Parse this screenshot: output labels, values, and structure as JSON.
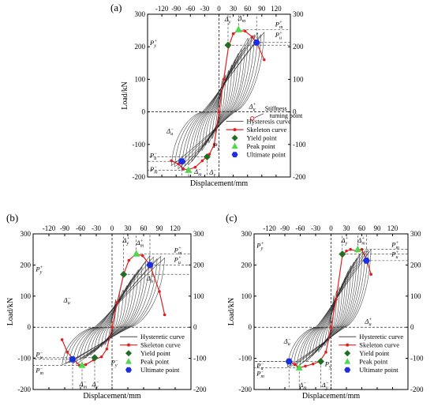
{
  "chart_data": [
    {
      "panel_label": "(a)",
      "type": "line",
      "xlabel": "Displacement/mm",
      "ylabel": "Load/kN",
      "xlim": [
        -150,
        150
      ],
      "ylim": [
        -200,
        300
      ],
      "xticks": [
        "-120",
        "-90",
        "-60",
        "-30",
        "0",
        "30",
        "60",
        "90",
        "120"
      ],
      "xtick_values": [
        -120,
        -90,
        -60,
        -30,
        0,
        30,
        60,
        90,
        120
      ],
      "yticks": [
        "-200",
        "-100",
        "0",
        "100",
        "200",
        "300"
      ],
      "ytick_values": [
        -200,
        -100,
        0,
        100,
        200,
        300
      ],
      "legend": [
        "Hysteresis curve",
        "Skeleton curve",
        "Yield point",
        "Peak point",
        "Ultimate point"
      ],
      "skeleton": {
        "x": [
          -100,
          -85,
          -75,
          -65,
          -50,
          -35,
          -20,
          -10,
          0,
          10,
          20,
          30,
          40,
          55,
          70,
          80,
          95
        ],
        "y": [
          -150,
          -160,
          -175,
          -178,
          -170,
          -150,
          -130,
          -100,
          0,
          100,
          200,
          240,
          250,
          248,
          230,
          210,
          160
        ]
      },
      "yield_points": [
        {
          "x": 19,
          "y": 205
        },
        {
          "x": -25,
          "y": -138
        }
      ],
      "peak_points": [
        {
          "x": 41,
          "y": 253
        },
        {
          "x": -64,
          "y": -179
        }
      ],
      "ultimate_points": [
        {
          "x": 79,
          "y": 213
        },
        {
          "x": -78,
          "y": -152
        }
      ],
      "annotation": "Stiffness\nturning point",
      "annotation_point": {
        "x": 70,
        "y": -20
      },
      "ref_labels": [
        {
          "t": "P",
          "sub": "y",
          "sup": "+",
          "x": -145,
          "y": 205
        },
        {
          "t": "P",
          "sub": "m",
          "sup": "+",
          "x": 118,
          "y": 262
        },
        {
          "t": "P",
          "sub": "u",
          "sup": "+",
          "x": 118,
          "y": 230
        },
        {
          "t": "P",
          "sub": "y",
          "sup": "−",
          "x": -12,
          "y": -110
        },
        {
          "t": "P",
          "sub": "u",
          "sup": "−",
          "x": -145,
          "y": -140
        },
        {
          "t": "P",
          "sub": "m",
          "sup": "−",
          "x": -145,
          "y": -183
        },
        {
          "t": "Δ",
          "sub": "y",
          "sup": "+",
          "x": 12,
          "y": 278
        },
        {
          "t": "Δ",
          "sub": "m",
          "sup": "+",
          "x": 40,
          "y": 282
        },
        {
          "t": "Δ",
          "sub": "u",
          "sup": "+",
          "x": 63,
          "y": 10
        },
        {
          "t": "Δ",
          "sub": "u",
          "sup": "−",
          "x": -110,
          "y": -65
        },
        {
          "t": "Δ",
          "sub": "m",
          "sup": "−",
          "x": -52,
          "y": -190
        },
        {
          "t": "Δ",
          "sub": "y",
          "sup": "−",
          "x": -20,
          "y": -192
        }
      ]
    },
    {
      "panel_label": "(b)",
      "type": "line",
      "xlabel": "Displacement/mm",
      "ylabel": "Load/kN",
      "xlim": [
        -150,
        150
      ],
      "ylim": [
        -200,
        300
      ],
      "xticks": [
        "-120",
        "-90",
        "-60",
        "-30",
        "0",
        "30",
        "60",
        "90",
        "120"
      ],
      "xtick_values": [
        -120,
        -90,
        -60,
        -30,
        0,
        30,
        60,
        90,
        120
      ],
      "yticks": [
        "-200",
        "-100",
        "0",
        "100",
        "200",
        "300"
      ],
      "ytick_values": [
        -200,
        -100,
        0,
        100,
        200,
        300
      ],
      "legend": [
        "Hysteretic curve",
        "Skeleton curve",
        "Yield point",
        "Peak point",
        "Ultimate point"
      ],
      "skeleton": {
        "x": [
          -95,
          -85,
          -75,
          -62,
          -50,
          -35,
          -20,
          -10,
          0,
          10,
          22,
          32,
          45,
          58,
          72,
          90,
          100
        ],
        "y": [
          -40,
          -80,
          -100,
          -122,
          -120,
          -105,
          -95,
          -70,
          0,
          80,
          170,
          215,
          235,
          230,
          200,
          115,
          40
        ]
      },
      "yield_points": [
        {
          "x": 22,
          "y": 170
        },
        {
          "x": -33,
          "y": -98
        }
      ],
      "peak_points": [
        {
          "x": 46,
          "y": 236
        },
        {
          "x": -57,
          "y": -122
        }
      ],
      "ultimate_points": [
        {
          "x": 72,
          "y": 200
        },
        {
          "x": -75,
          "y": -103
        }
      ],
      "ref_labels": [
        {
          "t": "P",
          "sub": "y",
          "sup": "+",
          "x": -145,
          "y": 180
        },
        {
          "t": "P",
          "sub": "m",
          "sup": "+",
          "x": 118,
          "y": 240
        },
        {
          "t": "P",
          "sub": "u",
          "sup": "+",
          "x": 118,
          "y": 210
        },
        {
          "t": "P",
          "sub": "y",
          "sup": "−",
          "x": -2,
          "y": -120
        },
        {
          "t": "P",
          "sub": "u",
          "sup": "−",
          "x": -145,
          "y": -95
        },
        {
          "t": "P",
          "sub": "m",
          "sup": "−",
          "x": -145,
          "y": -145
        },
        {
          "t": "Δ",
          "sub": "y",
          "sup": "+",
          "x": 20,
          "y": 272
        },
        {
          "t": "Δ",
          "sub": "m",
          "sup": "+",
          "x": 46,
          "y": 265
        },
        {
          "t": "Δ",
          "sub": "u",
          "sup": "+",
          "x": 66,
          "y": 150
        },
        {
          "t": "Δ",
          "sub": "u",
          "sup": "−",
          "x": -92,
          "y": 80
        },
        {
          "t": "Δ",
          "sub": "m",
          "sup": "−",
          "x": -62,
          "y": -190
        },
        {
          "t": "Δ",
          "sub": "y",
          "sup": "−",
          "x": -38,
          "y": -190
        }
      ]
    },
    {
      "panel_label": "(c)",
      "type": "line",
      "xlabel": "Displacement/mm",
      "ylabel": "Load/kN",
      "xlim": [
        -150,
        150
      ],
      "ylim": [
        -200,
        300
      ],
      "xticks": [
        "-120",
        "-90",
        "-60",
        "-30",
        "0",
        "30",
        "60",
        "90",
        "120"
      ],
      "xtick_values": [
        -120,
        -90,
        -60,
        -30,
        0,
        30,
        60,
        90,
        120
      ],
      "yticks": [
        "-200",
        "-100",
        "0",
        "100",
        "200",
        "300"
      ],
      "ytick_values": [
        -200,
        -100,
        0,
        100,
        200,
        300
      ],
      "legend": [
        "Hysteretic curve",
        "Skeleton curve",
        "Yield point",
        "Peak point",
        "Ultimate point"
      ],
      "skeleton": {
        "x": [
          -85,
          -78,
          -70,
          -62,
          -50,
          -35,
          -22,
          -10,
          0,
          10,
          22,
          30,
          38,
          50,
          60,
          70,
          78
        ],
        "y": [
          -110,
          -112,
          -120,
          -130,
          -125,
          -118,
          -110,
          -80,
          0,
          90,
          230,
          245,
          250,
          245,
          250,
          215,
          170
        ]
      },
      "yield_points": [
        {
          "x": 22,
          "y": 235
        },
        {
          "x": -20,
          "y": -110
        }
      ],
      "peak_points": [
        {
          "x": 52,
          "y": 250
        },
        {
          "x": -62,
          "y": -130
        }
      ],
      "ultimate_points": [
        {
          "x": 69,
          "y": 214
        },
        {
          "x": -82,
          "y": -110
        }
      ],
      "ref_labels": [
        {
          "t": "P",
          "sub": "y",
          "sup": "+",
          "x": -145,
          "y": 255
        },
        {
          "t": "P",
          "sub": "m",
          "sup": "+",
          "x": 118,
          "y": 258
        },
        {
          "t": "P",
          "sub": "u",
          "sup": "+",
          "x": 118,
          "y": 228
        },
        {
          "t": "P",
          "sub": "y",
          "sup": "−",
          "x": -12,
          "y": -125
        },
        {
          "t": "P",
          "sub": "u",
          "sup": "−",
          "x": -145,
          "y": -130
        },
        {
          "t": "P",
          "sub": "m",
          "sup": "−",
          "x": -145,
          "y": -155
        },
        {
          "t": "Δ",
          "sub": "y",
          "sup": "+",
          "x": 20,
          "y": 272
        },
        {
          "t": "Δ",
          "sub": "m",
          "sup": "+",
          "x": 52,
          "y": 272
        },
        {
          "t": "Δ",
          "sub": "u",
          "sup": "+",
          "x": 66,
          "y": 12
        },
        {
          "t": "Δ",
          "sub": "u",
          "sup": "−",
          "x": -92,
          "y": -52
        },
        {
          "t": "Δ",
          "sub": "m",
          "sup": "−",
          "x": -62,
          "y": -192
        },
        {
          "t": "Δ",
          "sub": "y",
          "sup": "−",
          "x": -18,
          "y": -192
        }
      ]
    }
  ],
  "colors": {
    "hysteresis": "#2a2a2a",
    "skeleton": "#e02020",
    "yield": "#1f6e24",
    "peak": "#4fd84a",
    "ultimate": "#1c2fe0",
    "ref": "#333333"
  }
}
